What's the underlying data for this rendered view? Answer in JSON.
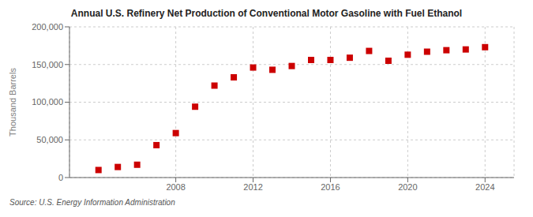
{
  "chart_data": {
    "type": "scatter",
    "title": "Annual U.S. Refinery Net Production of Conventional Motor Gasoline with Fuel Ethanol",
    "y_label": "Thousand Barrels",
    "annotations": [
      "Source: U.S. Energy Information Administration"
    ],
    "x": [
      2004,
      2005,
      2006,
      2007,
      2008,
      2009,
      2010,
      2011,
      2012,
      2013,
      2014,
      2015,
      2016,
      2017,
      2018,
      2019,
      2020,
      2021,
      2022,
      2023,
      2024
    ],
    "values": [
      10000,
      14000,
      17000,
      43000,
      59000,
      94000,
      122000,
      133000,
      146000,
      143000,
      148000,
      156000,
      156000,
      159000,
      168000,
      155000,
      163000,
      167000,
      169000,
      170000,
      173000
    ],
    "color": "#cc0000",
    "marker": "square",
    "xlim": [
      2002.5,
      2025.5
    ],
    "xticks": [
      2008,
      2012,
      2016,
      2020,
      2024
    ],
    "ylim": [
      0,
      200000
    ],
    "yticks": [
      0,
      {
        "value": 50000,
        "label": "50,000"
      },
      {
        "value": 100000,
        "label": "100,000"
      },
      {
        "value": 150000,
        "label": "150,000"
      },
      {
        "value": 200000,
        "label": "200,000"
      }
    ],
    "grid": true
  }
}
